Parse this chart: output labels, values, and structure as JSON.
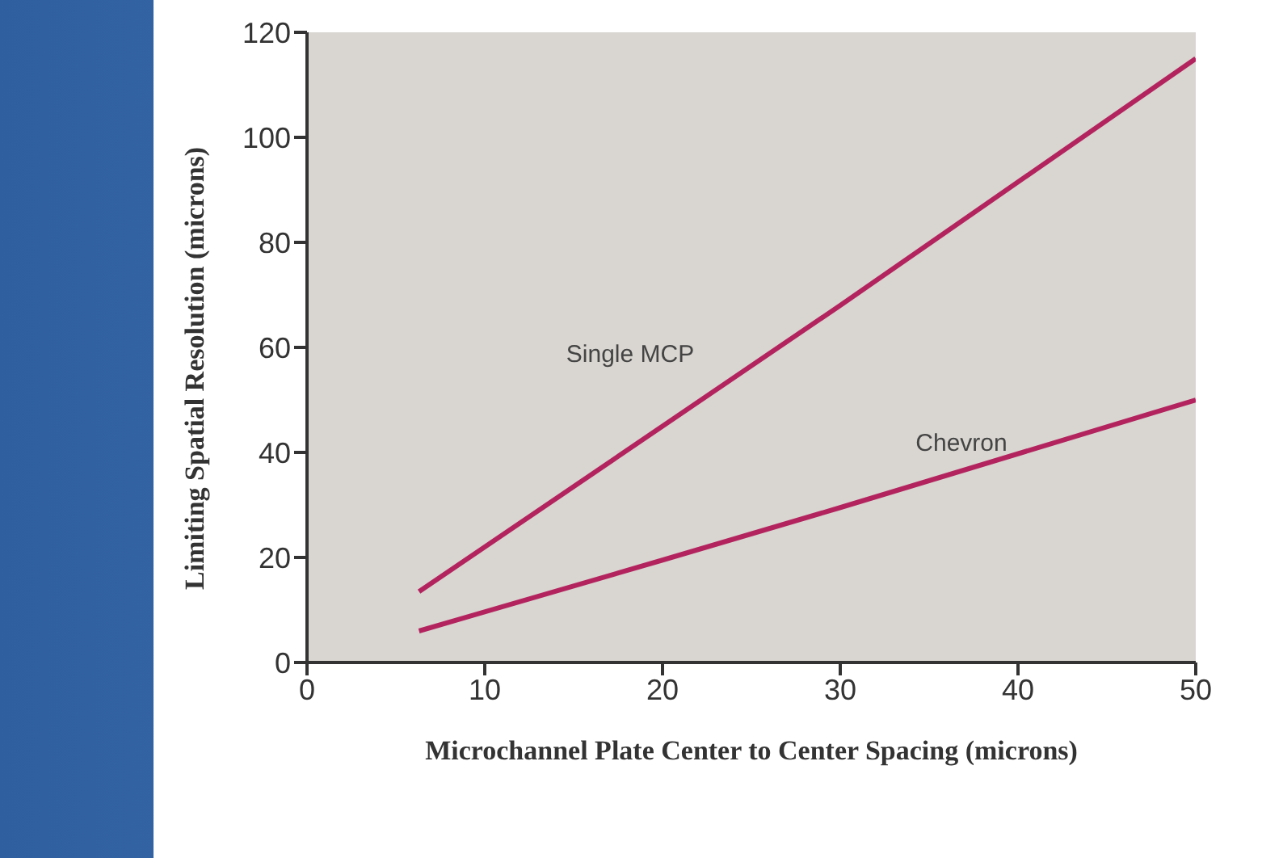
{
  "chart_data": {
    "type": "line",
    "xlabel": "Microchannel Plate Center to Center Spacing (microns)",
    "ylabel": "Limiting Spatial Resolution (microns)",
    "xlim": [
      0,
      50
    ],
    "xticks": [
      0,
      10,
      20,
      30,
      40,
      50
    ],
    "ylim": [
      0,
      120
    ],
    "yticks": [
      0,
      20,
      40,
      60,
      80,
      100,
      120
    ],
    "grid": false,
    "legend": false,
    "marker": "none",
    "line_style": "solid",
    "series": [
      {
        "name": "Single MCP",
        "color": "#b3245f",
        "x": [
          6.3,
          20,
          30,
          50
        ],
        "values": [
          13.5,
          45,
          68,
          115
        ]
      },
      {
        "name": "Chevron",
        "color": "#b3245f",
        "x": [
          6.3,
          20,
          30,
          50
        ],
        "values": [
          6,
          19.5,
          29.5,
          50
        ]
      }
    ]
  }
}
